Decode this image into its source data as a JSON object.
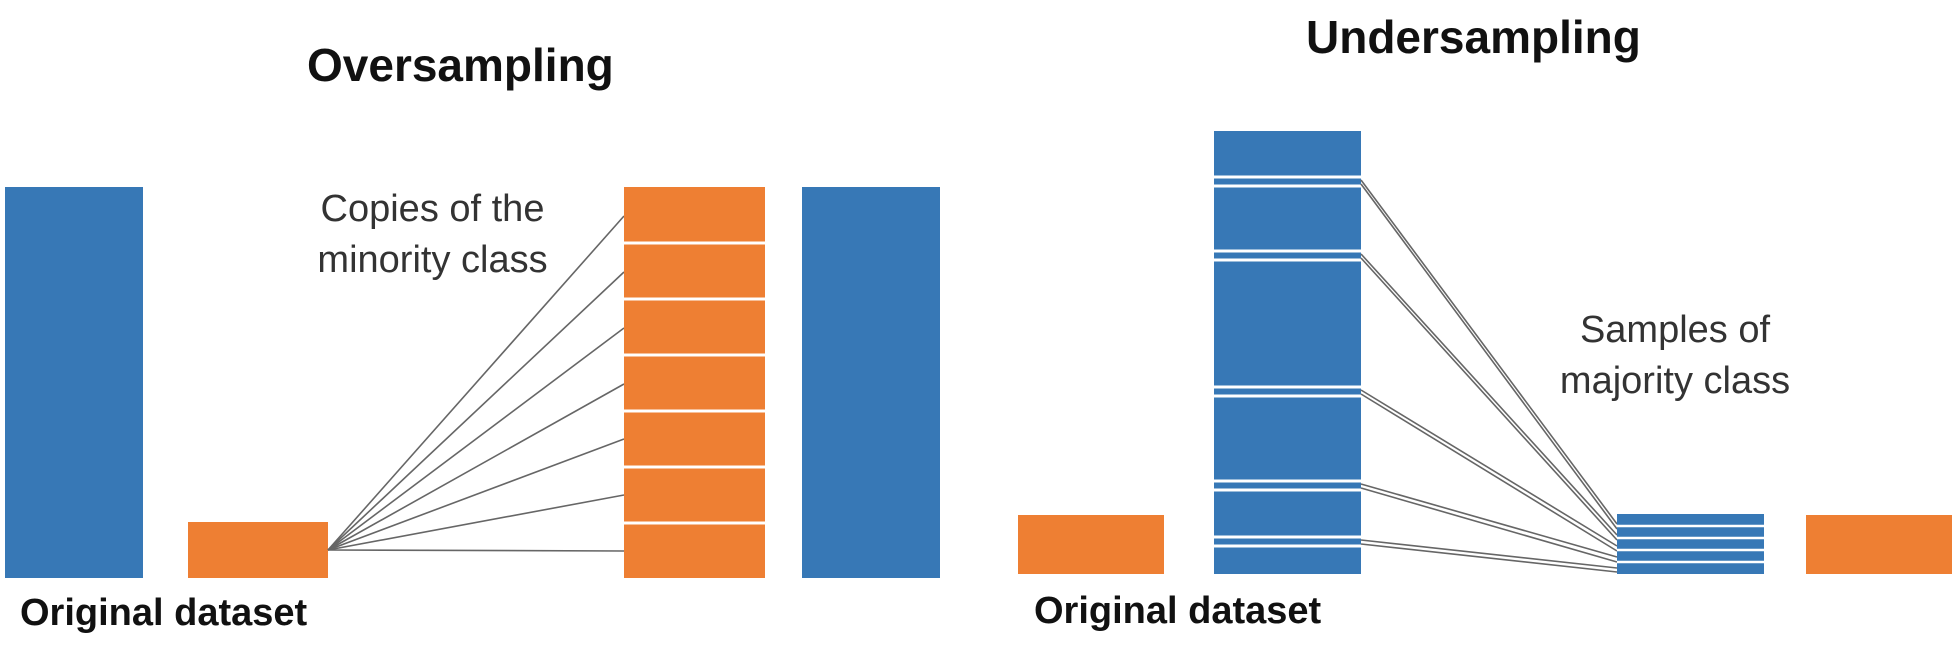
{
  "oversampling": {
    "title": "Oversampling",
    "original_label": "Original dataset",
    "annotation": [
      "Copies of the",
      "minority class"
    ]
  },
  "undersampling": {
    "title": "Undersampling",
    "original_label": "Original dataset",
    "annotation": [
      "Samples of",
      "majority class"
    ]
  },
  "colors": {
    "majority": "#3778b6",
    "minority": "#ee7f33",
    "line": "#666666"
  }
}
